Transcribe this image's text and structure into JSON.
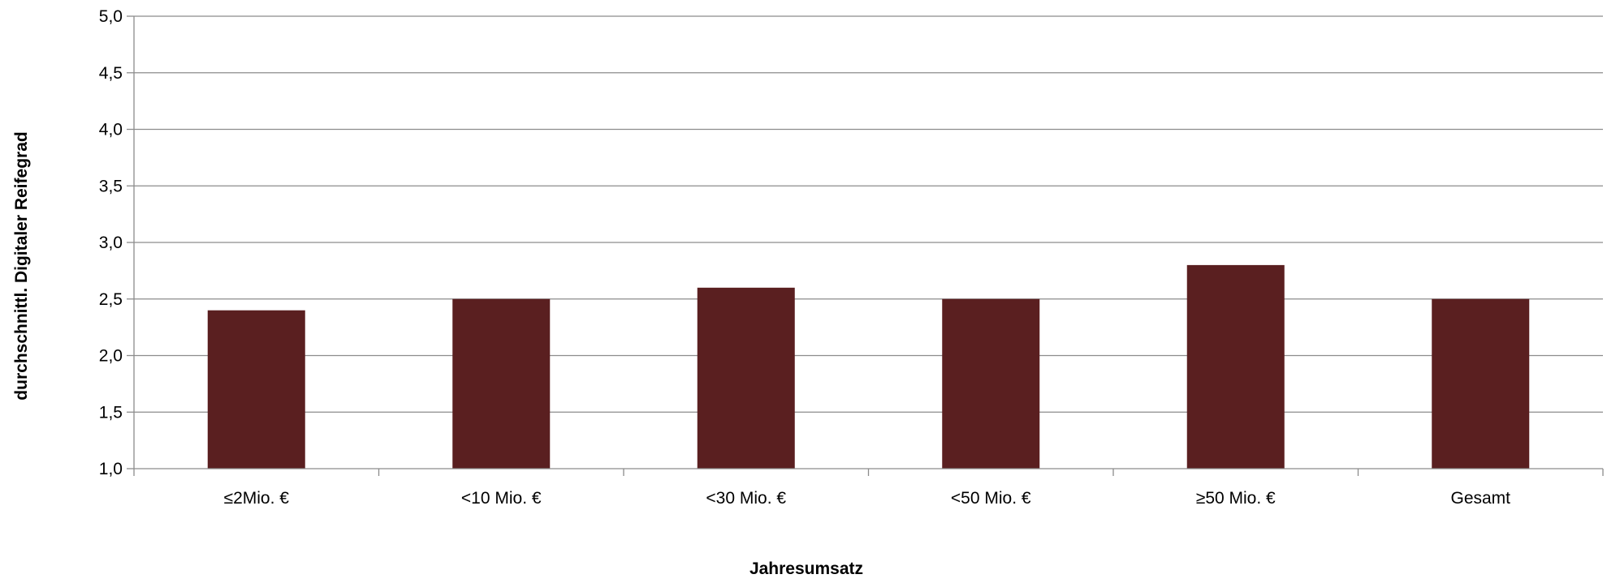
{
  "chart_data": {
    "type": "bar",
    "categories": [
      "≤2Mio. €",
      "<10 Mio. €",
      "<30 Mio. €",
      "<50 Mio. €",
      "≥50 Mio. €",
      "Gesamt"
    ],
    "series": [
      {
        "values": [
          2.4,
          2.5,
          2.6,
          2.5,
          2.8,
          2.5
        ],
        "color": "#5a1f20"
      }
    ],
    "title": "",
    "xlabel": "Jahresumsatz",
    "ylabel": "durchschnittl. Digitaler Reifegrad",
    "ylim": [
      1.0,
      5.0
    ],
    "yticks": [
      "1,0",
      "1,5",
      "2,0",
      "2,5",
      "3,0",
      "3,5",
      "4,0",
      "4,5",
      "5,0"
    ],
    "grid": true,
    "legend": "none"
  }
}
